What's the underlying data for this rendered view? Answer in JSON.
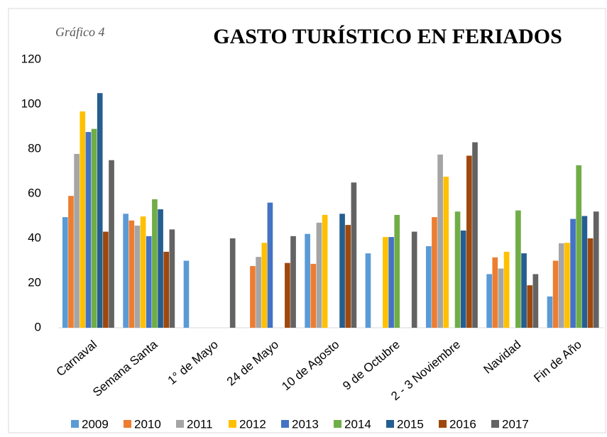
{
  "chart_data": {
    "type": "bar",
    "title": "GASTO TURÍSTICO EN FERIADOS",
    "subtitle": "Gráfico 4",
    "categories": [
      "Carnaval",
      "Semana Santa",
      "1° de Mayo",
      "24 de Mayo",
      "10 de Agosto",
      "9 de Octubre",
      "2 - 3 Noviembre",
      "Navidad",
      "Fin de Año"
    ],
    "series": [
      {
        "name": "2009",
        "color": "#5b9bd5",
        "values": [
          49.5,
          51,
          30,
          null,
          42,
          33.3,
          36.5,
          24,
          14
        ]
      },
      {
        "name": "2010",
        "color": "#ed7d31",
        "values": [
          59,
          48,
          null,
          27.6,
          28.6,
          null,
          49.5,
          31.5,
          30
        ]
      },
      {
        "name": "2011",
        "color": "#a5a5a5",
        "values": [
          77.8,
          45.7,
          null,
          31.7,
          47,
          null,
          77.5,
          26.5,
          37.8
        ]
      },
      {
        "name": "2012",
        "color": "#ffc000",
        "values": [
          96.8,
          49.8,
          null,
          38,
          50.5,
          40.6,
          67.6,
          34,
          38
        ]
      },
      {
        "name": "2013",
        "color": "#4472c4",
        "values": [
          87.6,
          41,
          null,
          56,
          null,
          40.6,
          null,
          null,
          48.7
        ]
      },
      {
        "name": "2014",
        "color": "#70ad47",
        "values": [
          89,
          57.5,
          null,
          null,
          null,
          50.5,
          52,
          52.5,
          72.7
        ]
      },
      {
        "name": "2015",
        "color": "#255e91",
        "values": [
          105,
          53,
          null,
          null,
          51,
          null,
          43.5,
          33.3,
          50
        ]
      },
      {
        "name": "2016",
        "color": "#9e480e",
        "values": [
          43,
          34,
          null,
          29,
          46,
          null,
          77,
          19,
          40
        ]
      },
      {
        "name": "2017",
        "color": "#636363",
        "values": [
          75,
          44,
          40,
          41,
          65,
          43,
          83,
          24,
          52
        ]
      }
    ],
    "ylim": [
      0,
      120
    ],
    "yticks": [
      0,
      20,
      40,
      60,
      80,
      100,
      120
    ],
    "grid": false,
    "legend": "bottom"
  }
}
